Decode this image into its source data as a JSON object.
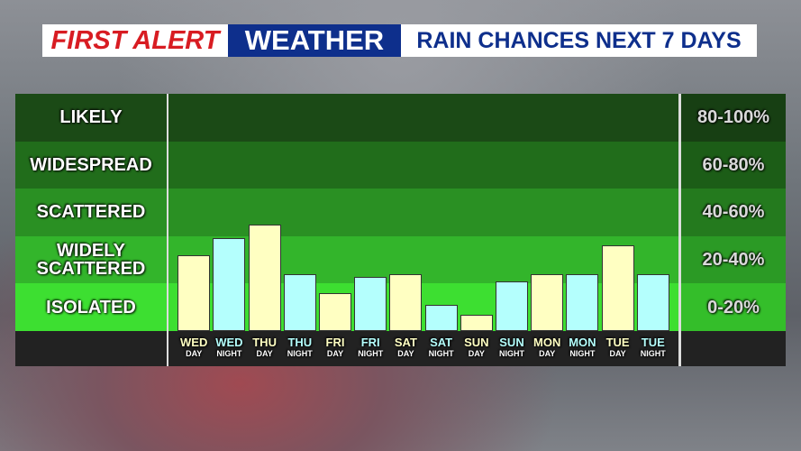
{
  "header": {
    "brand": "FIRST ALERT",
    "brand2": "WEATHER",
    "title": "RAIN CHANCES NEXT 7 DAYS"
  },
  "chart_data": {
    "type": "bar",
    "categories": [
      "WED",
      "WED",
      "THU",
      "THU",
      "FRI",
      "FRI",
      "SAT",
      "SAT",
      "SUN",
      "SUN",
      "MON",
      "MON",
      "TUE",
      "TUE"
    ],
    "sublabels": [
      "DAY",
      "NIGHT",
      "DAY",
      "NIGHT",
      "DAY",
      "NIGHT",
      "DAY",
      "NIGHT",
      "DAY",
      "NIGHT",
      "DAY",
      "NIGHT",
      "DAY",
      "NIGHT"
    ],
    "values": [
      32,
      39,
      45,
      24,
      16,
      23,
      24,
      11,
      7,
      21,
      24,
      24,
      36,
      24
    ],
    "colors": [
      "#ffffc2",
      "#b4fffd",
      "#ffffc2",
      "#b4fffd",
      "#ffffc2",
      "#b4fffd",
      "#ffffc2",
      "#b4fffd",
      "#ffffc2",
      "#b4fffd",
      "#ffffc2",
      "#b4fffd",
      "#ffffc2",
      "#b4fffd"
    ],
    "ylim": [
      0,
      100
    ],
    "bands": [
      {
        "label": "LIKELY",
        "range": "80-100%",
        "color": "#1b4a16"
      },
      {
        "label": "WIDESPREAD",
        "range": "60-80%",
        "color": "#216d1b"
      },
      {
        "label": "SCATTERED",
        "range": "40-60%",
        "color": "#2a9023"
      },
      {
        "label": "WIDELY SCATTERED",
        "range": "20-40%",
        "color": "#33b52b"
      },
      {
        "label": "ISOLATED",
        "range": "0-20%",
        "color": "#3ddf31"
      }
    ]
  }
}
